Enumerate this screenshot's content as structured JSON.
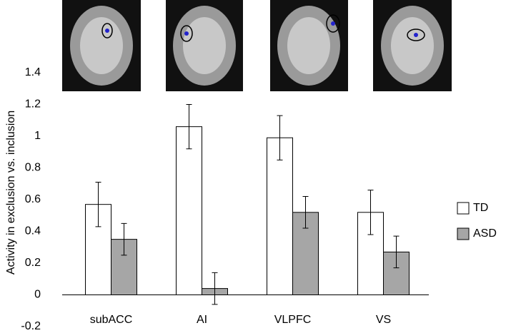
{
  "chart_data": {
    "type": "bar",
    "y_label": "Activity in exclusion vs. inclusion",
    "categories": [
      "subACC",
      "AI",
      "VLPFC",
      "VS"
    ],
    "series": [
      {
        "name": "TD",
        "color": "#ffffff",
        "values": [
          0.57,
          1.06,
          0.99,
          0.52
        ],
        "errors": [
          0.14,
          0.14,
          0.14,
          0.14
        ]
      },
      {
        "name": "ASD",
        "color": "#a6a6a6",
        "values": [
          0.35,
          0.04,
          0.52,
          0.27
        ],
        "errors": [
          0.1,
          0.1,
          0.1,
          0.1
        ]
      }
    ],
    "ylim": [
      -0.2,
      1.4
    ],
    "yticks": [
      -0.2,
      0,
      0.2,
      0.4,
      0.6,
      0.8,
      1,
      1.2,
      1.4
    ],
    "legend": "right"
  }
}
